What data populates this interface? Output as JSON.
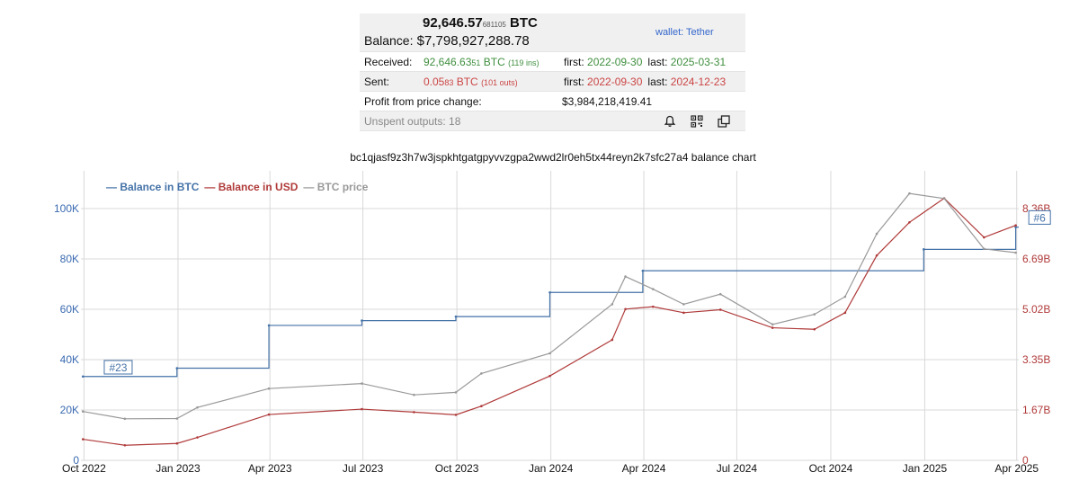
{
  "balance": {
    "btc_main": "92,646.57",
    "btc_small": "681105",
    "btc_unit": "BTC",
    "balance_label": "Balance:",
    "usd": "$7,798,927,288.78",
    "wallet": "wallet: Tether"
  },
  "received": {
    "label": "Received:",
    "btc_main": "92,646.63",
    "btc_small": "51",
    "btc_unit": "BTC",
    "ins": "(119 ins)",
    "first_label": "first:",
    "first": "2022-09-30",
    "last_label": "last:",
    "last": "2025-03-31"
  },
  "sent": {
    "label": "Sent:",
    "btc_main": "0.05",
    "btc_small": "83",
    "btc_unit": "BTC",
    "outs": "(101 outs)",
    "first_label": "first:",
    "first": "2022-09-30",
    "last_label": "last:",
    "last": "2024-12-23"
  },
  "profit": {
    "label": "Profit from price change:",
    "value": "$3,984,218,419.41"
  },
  "unspent": {
    "label": "Unspent outputs: 18",
    "icons": [
      "bell-icon",
      "qr-code-icon",
      "copy-icon"
    ]
  },
  "colors": {
    "btc_balance": "#4472a8",
    "usd_balance": "#b03a3a",
    "btc_price": "#999999"
  },
  "chart_data": {
    "type": "line",
    "title": "bc1qjasf9z3h7w3jspkhtgatgpyvvzgpa2wwd2lr0eh5tx44reyn2k7sfc27a4 balance chart",
    "legend": [
      {
        "name": "Balance in BTC",
        "color": "#4472a8"
      },
      {
        "name": "Balance in USD",
        "color": "#b03a3a"
      },
      {
        "name": "BTC price",
        "color": "#999999"
      }
    ],
    "legend_placement": "top-left",
    "grid": true,
    "xlim": [
      "2022-09-28",
      "2025-04-03"
    ],
    "x_ticks": [
      "Oct 2022",
      "Jan 2023",
      "Apr 2023",
      "Jul 2023",
      "Oct 2023",
      "Jan 2024",
      "Apr 2024",
      "Jul 2024",
      "Oct 2024",
      "Jan 2025",
      "Apr 2025"
    ],
    "y_left": {
      "ticks": [
        "0",
        "20K",
        "40K",
        "60K",
        "80K",
        "100K"
      ],
      "ylim": [
        0,
        115000
      ]
    },
    "y_right": {
      "ticks": [
        "0",
        "1.67B",
        "3.35B",
        "5.02B",
        "6.69B",
        "8.36B"
      ],
      "ylim": [
        0,
        9610000000
      ]
    },
    "series": [
      {
        "name": "Balance in BTC",
        "axis": "left",
        "step": true,
        "x": [
          "2022-09-30",
          "2022-12-31",
          "2023-03-31",
          "2023-06-30",
          "2023-09-30",
          "2023-12-31",
          "2024-03-31",
          "2024-12-31",
          "2025-03-31"
        ],
        "y": [
          33300,
          36600,
          53600,
          55500,
          57100,
          66700,
          75300,
          83800,
          92647
        ]
      },
      {
        "name": "Balance in USD",
        "axis": "right",
        "x": [
          "2022-09-30",
          "2022-11-10",
          "2022-12-31",
          "2023-01-20",
          "2023-03-31",
          "2023-06-30",
          "2023-08-20",
          "2023-09-30",
          "2023-10-25",
          "2023-12-31",
          "2024-03-01",
          "2024-03-14",
          "2024-04-10",
          "2024-05-10",
          "2024-06-15",
          "2024-08-05",
          "2024-09-15",
          "2024-10-15",
          "2024-11-15",
          "2024-12-17",
          "2025-01-20",
          "2025-02-28",
          "2025-03-31"
        ],
        "y": [
          700000000,
          500000000,
          560000000,
          760000000,
          1520000000,
          1700000000,
          1600000000,
          1510000000,
          1800000000,
          2800000000,
          4000000000,
          5020000000,
          5100000000,
          4900000000,
          5000000000,
          4400000000,
          4350000000,
          4900000000,
          6800000000,
          7900000000,
          8700000000,
          7400000000,
          7800000000
        ]
      },
      {
        "name": "BTC price",
        "axis": "left",
        "x": [
          "2022-09-30",
          "2022-11-10",
          "2022-12-31",
          "2023-01-20",
          "2023-03-31",
          "2023-06-30",
          "2023-08-20",
          "2023-09-30",
          "2023-10-25",
          "2023-12-31",
          "2024-03-01",
          "2024-03-14",
          "2024-04-10",
          "2024-05-10",
          "2024-06-15",
          "2024-08-05",
          "2024-09-15",
          "2024-10-15",
          "2024-11-15",
          "2024-12-17",
          "2025-01-20",
          "2025-02-28",
          "2025-03-31"
        ],
        "y": [
          19400,
          16500,
          16600,
          21000,
          28500,
          30500,
          26000,
          27000,
          34500,
          42500,
          62000,
          73000,
          68000,
          62000,
          66000,
          54000,
          58000,
          65000,
          90000,
          106000,
          104000,
          84000,
          82500
        ]
      }
    ],
    "annotations": [
      {
        "text": "#23",
        "x": "2022-10-05",
        "y": 35000
      },
      {
        "text": "#6",
        "x": "2025-03-28",
        "y": 94500
      }
    ]
  }
}
